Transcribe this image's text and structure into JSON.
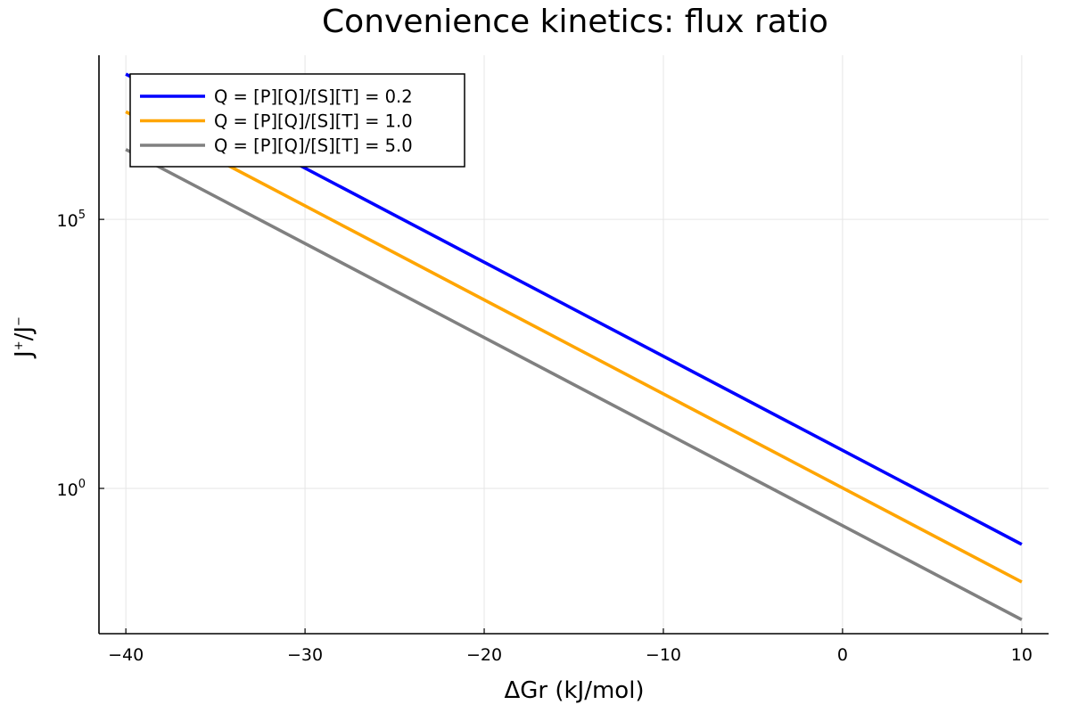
{
  "chart_data": {
    "type": "line",
    "title": "Convenience kinetics: flux ratio",
    "xlabel": "ΔGr (kJ/mol)",
    "ylabel_base": "J",
    "ylabel_sup1": "+",
    "ylabel_mid": "/J",
    "ylabel_sup2": "−",
    "xlim": [
      -41.5,
      11.5
    ],
    "xticks": [
      -40,
      -30,
      -20,
      -10,
      0,
      10
    ],
    "xtick_labels": [
      "−40",
      "−30",
      "−20",
      "−10",
      "0",
      "10"
    ],
    "y_scale": "log10",
    "ylim_log10": [
      -2.7,
      8.05
    ],
    "yticks": [
      {
        "base": "10",
        "exp": "5",
        "log10": 5
      },
      {
        "base": "10",
        "exp": "0",
        "log10": 0
      }
    ],
    "grid": true,
    "legend_position": "top-left",
    "series": [
      {
        "name": "Q = [P][Q]/[S][T] = 0.2",
        "color": "#0000ff",
        "x": [
          -40,
          10
        ],
        "log10_y": [
          7.7,
          -1.04
        ]
      },
      {
        "name": "Q = [P][Q]/[S][T] = 1.0",
        "color": "#ffa500",
        "x": [
          -40,
          10
        ],
        "log10_y": [
          7.0,
          -1.74
        ]
      },
      {
        "name": "Q = [P][Q]/[S][T] = 5.0",
        "color": "#808080",
        "x": [
          -40,
          10
        ],
        "log10_y": [
          6.3,
          -2.44
        ]
      }
    ]
  }
}
